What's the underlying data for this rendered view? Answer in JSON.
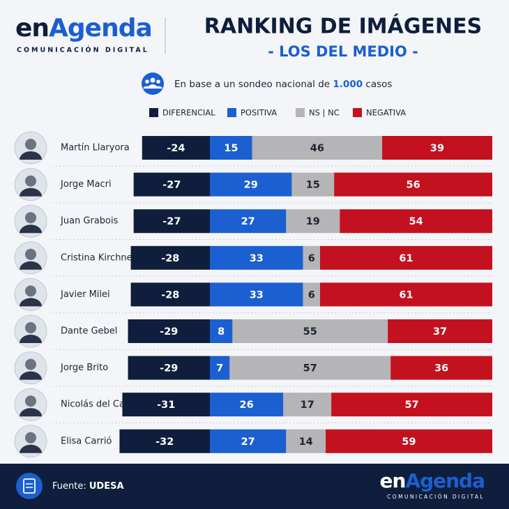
{
  "brand": {
    "prefix": "en",
    "suffix": "Agenda",
    "tagline": "COMUNICACIÓN DIGITAL"
  },
  "note": {
    "before": "En base a un sondeo nacional de",
    "highlight": "1.000",
    "after": "casos"
  },
  "source": {
    "label": "Fuente:",
    "name": "UDESA"
  },
  "chart_data": {
    "type": "bar",
    "orientation": "horizontal",
    "stacked": true,
    "title": "RANKING DE IMÁGENES",
    "subtitle": "- LOS DEL MEDIO -",
    "categories": [
      "Martín Llaryora",
      "Jorge Macri",
      "Juan Grabois",
      "Cristina Kirchner",
      "Javier Milei",
      "Dante Gebel",
      "Jorge Brito",
      "Nicolás del Caño",
      "Elisa Carrió"
    ],
    "series": [
      {
        "name": "DIFERENCIAL",
        "color": "#0e1e3c",
        "values": [
          -24,
          -27,
          -27,
          -28,
          -28,
          -29,
          -29,
          -31,
          -32
        ]
      },
      {
        "name": "POSITIVA",
        "color": "#1b5fd1",
        "values": [
          15,
          29,
          27,
          33,
          33,
          8,
          7,
          26,
          27
        ]
      },
      {
        "name": "NS | NC",
        "color": "#b5b5b7",
        "values": [
          46,
          15,
          19,
          6,
          6,
          55,
          57,
          17,
          14
        ]
      },
      {
        "name": "NEGATIVA",
        "color": "#c4111f",
        "values": [
          39,
          56,
          54,
          61,
          61,
          37,
          36,
          57,
          59
        ]
      }
    ],
    "legend": "top"
  }
}
